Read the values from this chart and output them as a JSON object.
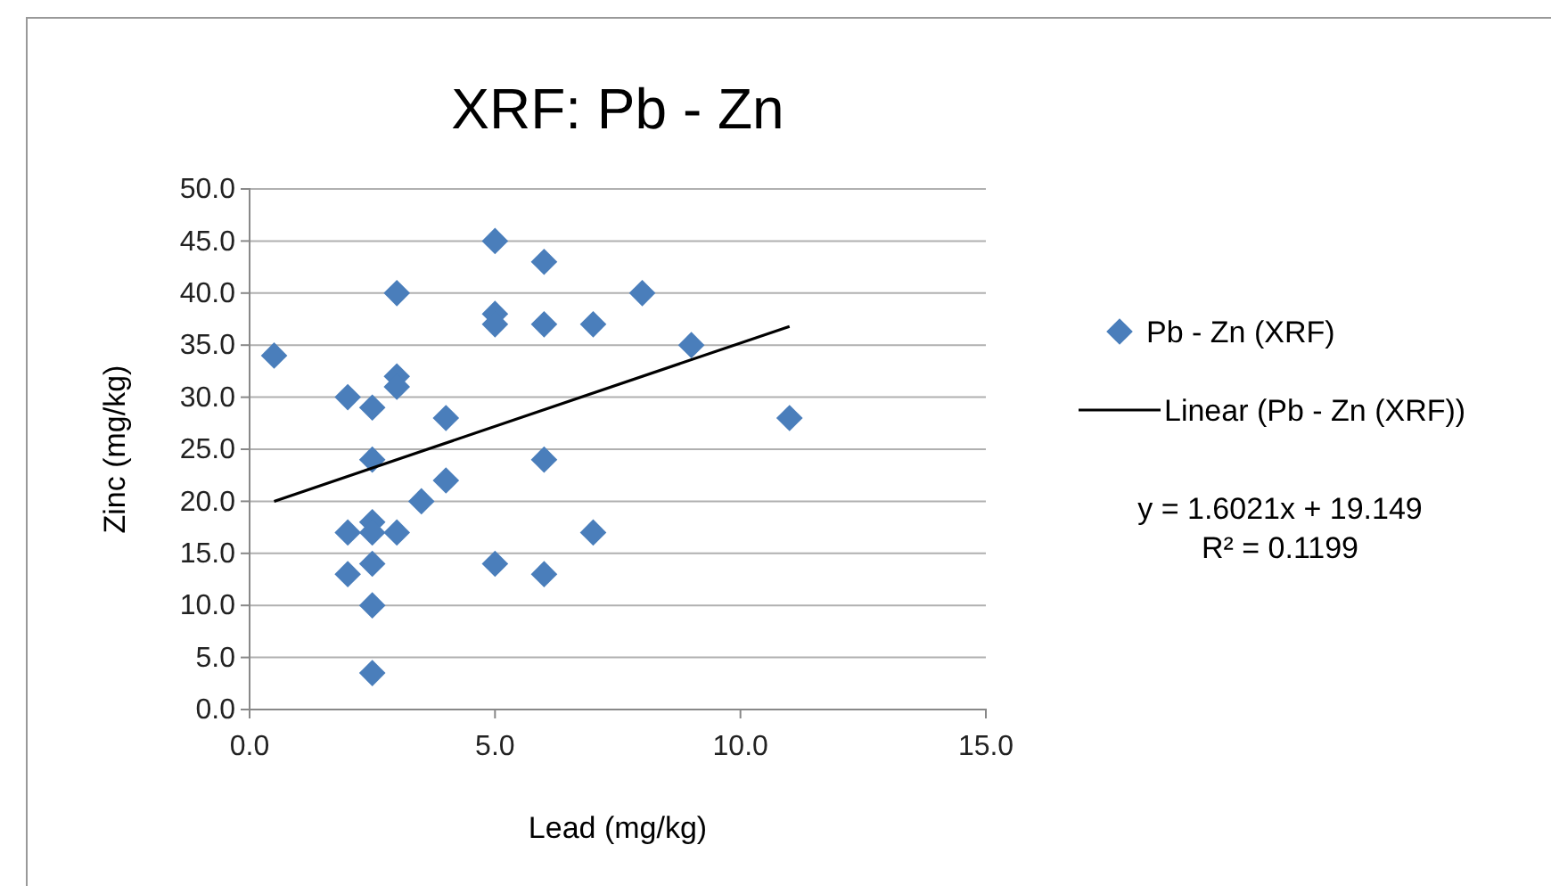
{
  "chart_data": {
    "type": "scatter",
    "title": "XRF: Pb - Zn",
    "xlabel": "Lead (mg/kg)",
    "ylabel": "Zinc (mg/kg)",
    "xlim": [
      0,
      15
    ],
    "xticks": [
      {
        "value": 0,
        "label": "0.0"
      },
      {
        "value": 5,
        "label": "5.0"
      },
      {
        "value": 10,
        "label": "10.0"
      },
      {
        "value": 15,
        "label": "15.0"
      }
    ],
    "ylim": [
      0,
      50
    ],
    "yticks": [
      {
        "value": 0,
        "label": "0.0"
      },
      {
        "value": 5,
        "label": "5.0"
      },
      {
        "value": 10,
        "label": "10.0"
      },
      {
        "value": 15,
        "label": "15.0"
      },
      {
        "value": 20,
        "label": "20.0"
      },
      {
        "value": 25,
        "label": "25.0"
      },
      {
        "value": 30,
        "label": "30.0"
      },
      {
        "value": 35,
        "label": "35.0"
      },
      {
        "value": 40,
        "label": "40.0"
      },
      {
        "value": 45,
        "label": "45.0"
      },
      {
        "value": 50,
        "label": "50.0"
      }
    ],
    "grid": "y",
    "legend": "right",
    "series": [
      {
        "name": "Pb - Zn (XRF)",
        "color": "#4a7ebb",
        "marker": "diamond",
        "x": [
          0.5,
          2,
          2,
          2,
          2.5,
          2.5,
          2.5,
          2.5,
          2.5,
          2.5,
          2.5,
          3,
          3,
          3,
          3,
          3.5,
          4,
          4,
          5,
          5,
          5,
          5,
          6,
          6,
          6,
          6,
          7,
          7,
          8,
          9,
          11
        ],
        "values": [
          34,
          30,
          17,
          13,
          29,
          24,
          18,
          17,
          14,
          10,
          3.5,
          40,
          32,
          31,
          17,
          20,
          28,
          22,
          45,
          38,
          37,
          14,
          43,
          37,
          24,
          13,
          37,
          17,
          40,
          35,
          28
        ]
      },
      {
        "name": "Linear (Pb - Zn (XRF))",
        "type": "line",
        "color": "#000000",
        "line_style": "solid",
        "marker": "none",
        "x": [
          0.5,
          11
        ],
        "values": [
          20,
          36.8
        ]
      }
    ],
    "annotations": [
      "y = 1.6021x + 19.149",
      "R² = 0.1199"
    ]
  }
}
